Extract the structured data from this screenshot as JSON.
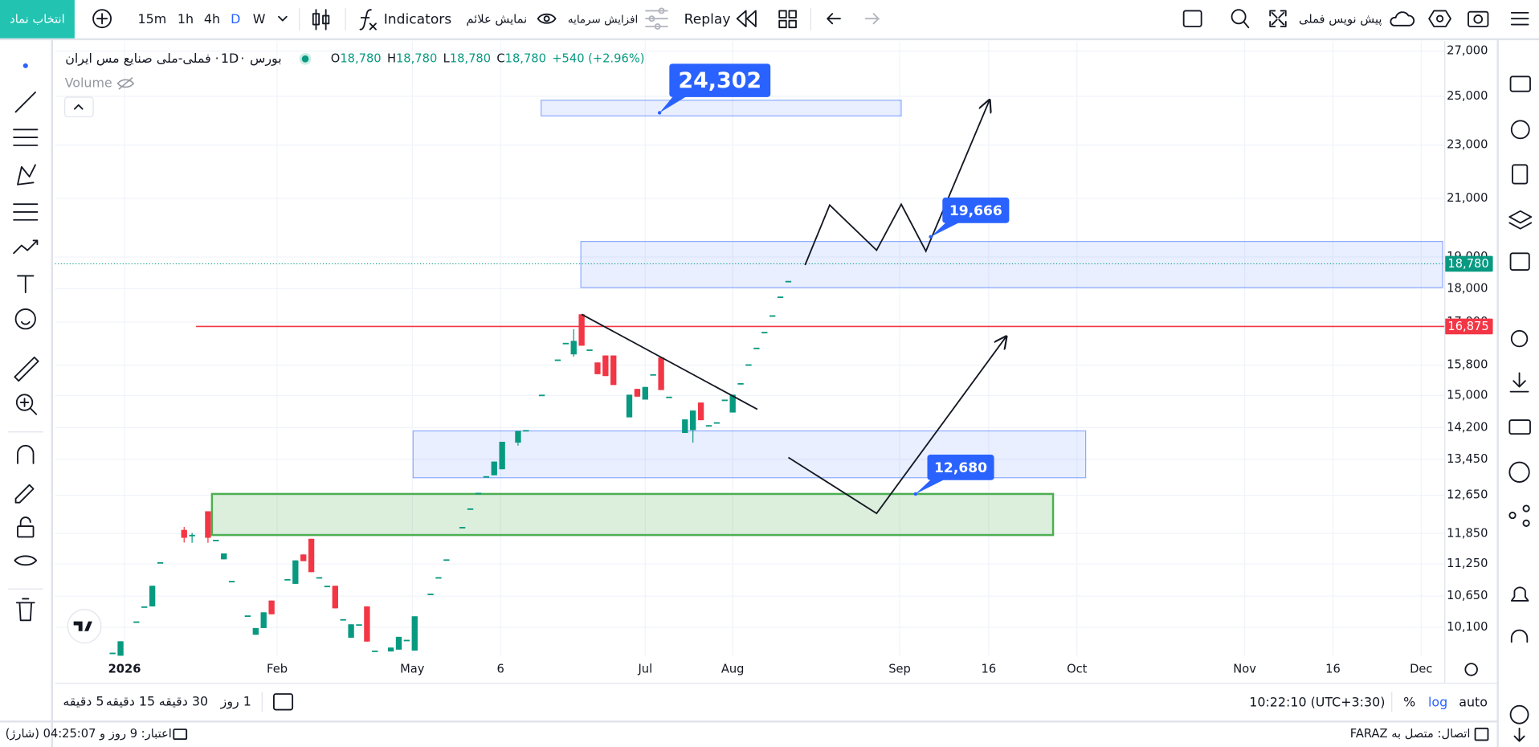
{
  "toolbar": {
    "symbol_button": "انتخاب نماد",
    "intervals": [
      "15m",
      "1h",
      "4h",
      "D",
      "W"
    ],
    "indicators": "Indicators",
    "show_signals": "نمایش علائم",
    "capital_increase": "افزایش سرمایه",
    "replay": "Replay",
    "draft": "پیش نویس فملی"
  },
  "legend": {
    "exchange": "بورس",
    "interval": "1D",
    "symbol": "فملی-ملی صنایع مس ایران",
    "ohlc": [
      {
        "label": "O",
        "value": "18,780"
      },
      {
        "label": "H",
        "value": "18,780"
      },
      {
        "label": "L",
        "value": "18,780"
      },
      {
        "label": "C",
        "value": "18,780"
      }
    ],
    "change": "+540 (+2.96%)",
    "volume": "Volume"
  },
  "chart": {
    "type": "candlestick",
    "log": true,
    "grid": true,
    "ylim": [
      9620,
      27460
    ],
    "yticks": [
      {
        "value": 10100,
        "label": "10,100"
      },
      {
        "value": 10650,
        "label": "10,650"
      },
      {
        "value": 11250,
        "label": "11,250"
      },
      {
        "value": 11850,
        "label": "11,850"
      },
      {
        "value": 12650,
        "label": "12,650"
      },
      {
        "value": 13450,
        "label": "13,450"
      },
      {
        "value": 14200,
        "label": "14,200"
      },
      {
        "value": 15000,
        "label": "15,000"
      },
      {
        "value": 15800,
        "label": "15,800"
      },
      {
        "value": 17000,
        "label": "17,000"
      },
      {
        "value": 18000,
        "label": "18,000"
      },
      {
        "value": 19000,
        "label": "19,000"
      },
      {
        "value": 21000,
        "label": "21,000"
      },
      {
        "value": 23000,
        "label": "23,000"
      },
      {
        "value": 25000,
        "label": "25,000"
      },
      {
        "value": 27000,
        "label": "27,000"
      }
    ],
    "xlim": [
      0,
      174
    ],
    "xticks": [
      {
        "value": 8.5,
        "label": "2026"
      },
      {
        "value": 27.7,
        "label": "Feb"
      },
      {
        "value": 44.7,
        "label": "May"
      },
      {
        "value": 55.8,
        "label": "6"
      },
      {
        "value": 74,
        "label": "Jul"
      },
      {
        "value": 85,
        "label": "Aug"
      },
      {
        "value": 106,
        "label": "Sep"
      },
      {
        "value": 117.2,
        "label": "16"
      },
      {
        "value": 128.3,
        "label": "Oct"
      },
      {
        "value": 149.4,
        "label": "Nov"
      },
      {
        "value": 160.5,
        "label": "16"
      },
      {
        "value": 171.6,
        "label": "Dec"
      }
    ],
    "up_color": "#089981",
    "down_color": "#f23645",
    "candles": {
      "x": [
        7,
        8,
        10,
        11,
        12,
        13,
        16,
        17,
        19,
        20,
        21,
        22,
        24,
        25,
        26,
        27,
        29,
        30,
        31,
        32,
        33,
        34,
        35,
        36,
        37,
        38,
        39,
        40,
        42,
        43,
        44,
        45,
        47,
        48,
        49,
        51,
        52,
        53,
        54,
        55,
        56,
        58,
        59,
        61,
        63,
        64,
        65,
        66,
        67,
        68,
        69,
        70,
        72,
        73,
        74,
        75,
        76,
        77,
        79,
        80,
        81,
        82,
        83,
        84,
        85,
        86,
        87,
        88,
        89,
        90,
        91,
        92
      ],
      "open": [
        9670,
        9610,
        10200,
        10465,
        10465,
        11285,
        11925,
        11825,
        12310,
        11725,
        11340,
        10930,
        10305,
        9970,
        10085,
        10570,
        10965,
        10875,
        11435,
        11745,
        11000,
        10840,
        10840,
        10240,
        9920,
        10150,
        10465,
        9705,
        9690,
        9720,
        9885,
        9705,
        10695,
        11000,
        11340,
        11985,
        12370,
        12705,
        13070,
        13090,
        13225,
        13840,
        14140,
        15020,
        15950,
        16410,
        16090,
        17230,
        16225,
        15870,
        16060,
        16060,
        14450,
        15170,
        14895,
        15555,
        16005,
        14970,
        14070,
        14140,
        14820,
        14260,
        14330,
        14895,
        14570,
        15320,
        15820,
        16275,
        16720,
        17200,
        17760,
        18240
      ],
      "high": [
        9670,
        9860,
        10200,
        10465,
        10840,
        11285,
        11985,
        11865,
        12310,
        11725,
        11455,
        10930,
        10305,
        10085,
        10360,
        10570,
        10965,
        11320,
        11435,
        11745,
        11000,
        10840,
        10840,
        10240,
        10150,
        10150,
        10465,
        9705,
        9755,
        9935,
        9885,
        10290,
        10695,
        11000,
        11340,
        11985,
        12370,
        12705,
        13070,
        13400,
        13860,
        14120,
        14140,
        15020,
        15950,
        16410,
        16800,
        17230,
        16225,
        15870,
        16060,
        16060,
        15020,
        15170,
        15220,
        15555,
        16005,
        14970,
        14400,
        14620,
        14820,
        14260,
        14330,
        14895,
        15020,
        15320,
        15820,
        16275,
        16720,
        17200,
        17760,
        18240
      ],
      "low": [
        9670,
        9610,
        10200,
        10465,
        10465,
        11285,
        11670,
        11665,
        11665,
        11725,
        11340,
        10930,
        10305,
        9970,
        10085,
        10325,
        10965,
        10875,
        11305,
        11095,
        11000,
        10840,
        10430,
        10240,
        9920,
        10150,
        9855,
        9705,
        9690,
        9720,
        9885,
        9705,
        10695,
        11000,
        11340,
        11985,
        12370,
        12705,
        13070,
        13090,
        13225,
        13770,
        14140,
        15020,
        15950,
        16410,
        16025,
        16330,
        16225,
        15555,
        15505,
        15270,
        14450,
        14970,
        14895,
        15555,
        15140,
        14970,
        14070,
        13840,
        14380,
        14260,
        14330,
        14895,
        14570,
        15320,
        15820,
        16275,
        16720,
        17200,
        17760,
        18240
      ],
      "close": [
        9670,
        9860,
        10200,
        10465,
        10840,
        11285,
        11765,
        11825,
        11765,
        11725,
        11455,
        10930,
        10305,
        10085,
        10360,
        10325,
        10965,
        11320,
        11305,
        11095,
        11000,
        10840,
        10430,
        10240,
        10150,
        10150,
        9855,
        9705,
        9755,
        9935,
        9885,
        10290,
        10695,
        11000,
        11340,
        11985,
        12370,
        12705,
        13070,
        13400,
        13860,
        14120,
        14140,
        15020,
        15950,
        16410,
        16465,
        16330,
        16225,
        15555,
        15505,
        15270,
        15020,
        14970,
        15220,
        15555,
        15140,
        14970,
        14400,
        14620,
        14380,
        14260,
        14330,
        14895,
        15020,
        15320,
        15820,
        16275,
        16720,
        17200,
        17760,
        18240
      ]
    },
    "last_price": {
      "value": 18780,
      "label": "18,780",
      "color": "#089981"
    },
    "level": {
      "value": 16875,
      "label": "16,875",
      "color": "#f23645",
      "x_start": 17.5
    },
    "zones": [
      {
        "x1": 60.9,
        "x2": 106.2,
        "top": 24830,
        "bottom": 24173,
        "color": "#2962ff"
      },
      {
        "x1": 65.9,
        "x2": 174.3,
        "top": 19510,
        "bottom": 18035,
        "color": "#2962ff"
      },
      {
        "x1": 44.8,
        "x2": 129.4,
        "top": 14120,
        "bottom": 13035,
        "color": "#2962ff"
      },
      {
        "x1": 19.5,
        "x2": 125.3,
        "top": 12680,
        "bottom": 11820,
        "color": "#4caf50"
      }
    ],
    "lines": [
      {
        "x": [
          66,
          88.1
        ],
        "price": [
          17230,
          14650
        ],
        "color": "#131722",
        "arrow": false
      },
      {
        "x": [
          94.1,
          97.2,
          103.1,
          106.2,
          109.3,
          117.3
        ],
        "price": [
          18740,
          20760,
          19220,
          20790,
          19190,
          24830
        ],
        "color": "#131722",
        "arrow": true
      },
      {
        "x": [
          92,
          103.1,
          119.4
        ],
        "price": [
          13495,
          12265,
          16585
        ],
        "color": "#131722",
        "arrow": true
      }
    ],
    "callouts": [
      {
        "x": 75.8,
        "value": 24302,
        "label": "24,302",
        "color": "#2962ff"
      },
      {
        "x": 109.9,
        "value": 19666,
        "label": "19,666",
        "color": "#2962ff"
      },
      {
        "x": 108.0,
        "value": 12680,
        "label": "12,680",
        "color": "#2962ff"
      }
    ]
  },
  "bottom": {
    "timeframes": [
      "5 دقیقه",
      "15 دقیقه",
      "30 دقیقه",
      "1 روز"
    ],
    "clock": "10:22:10 (UTC+3:30)",
    "percent": "%",
    "log": "log",
    "auto": "auto"
  },
  "status": {
    "credit": "اعتبار: 9 روز و 04:25:07 (شارژ)",
    "connection": "اتصال: متصل به FARAZ"
  }
}
